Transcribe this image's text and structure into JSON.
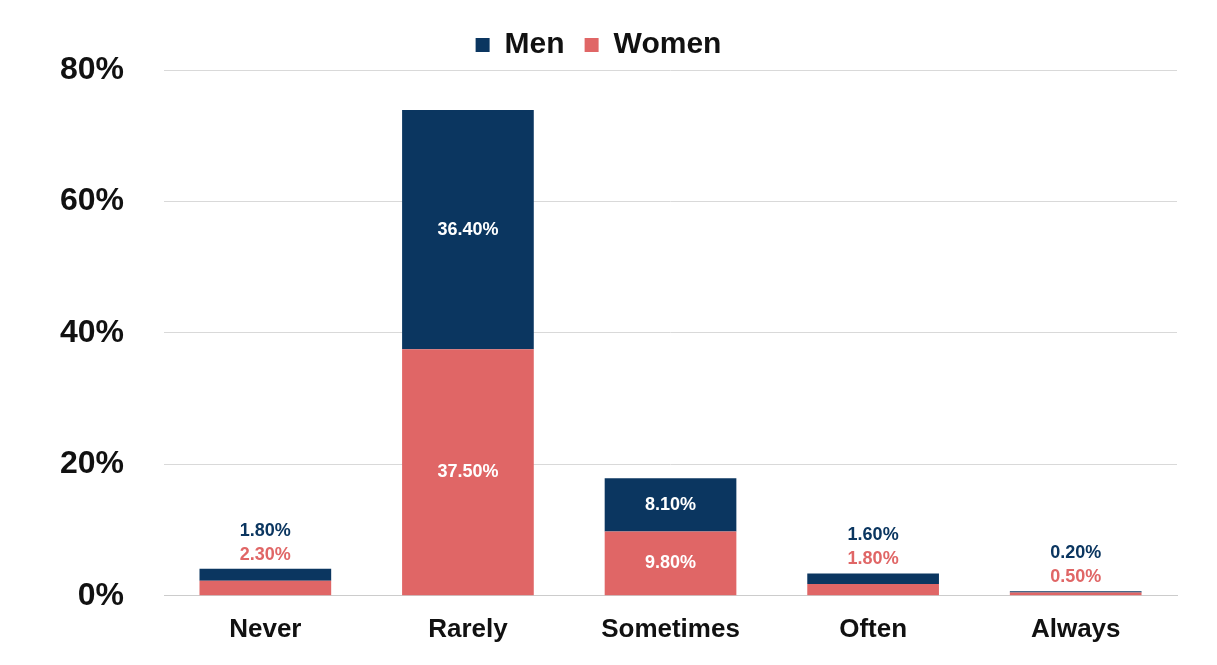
{
  "chart_data": {
    "type": "bar",
    "categories": [
      "Never",
      "Rarely",
      "Sometimes",
      "Often",
      "Always"
    ],
    "series": [
      {
        "name": "Men",
        "color": "#0b3660",
        "values": [
          1.8,
          36.4,
          8.1,
          1.6,
          0.2
        ],
        "value_labels": [
          "1.80%",
          "36.40%",
          "8.10%",
          "1.60%",
          "0.20%"
        ]
      },
      {
        "name": "Women",
        "color": "#e06666",
        "values": [
          2.3,
          37.5,
          9.8,
          1.8,
          0.5
        ],
        "value_labels": [
          "2.30%",
          "37.50%",
          "9.80%",
          "1.80%",
          "0.50%"
        ]
      }
    ],
    "ylim": [
      0,
      80
    ],
    "yticks": [
      {
        "value": 0,
        "label": "0%"
      },
      {
        "value": 20,
        "label": "20%"
      },
      {
        "value": 40,
        "label": "40%"
      },
      {
        "value": 60,
        "label": "60%"
      },
      {
        "value": 80,
        "label": "80%"
      }
    ],
    "grid": true,
    "stacked": true,
    "legend": "top",
    "data_labels": true
  }
}
